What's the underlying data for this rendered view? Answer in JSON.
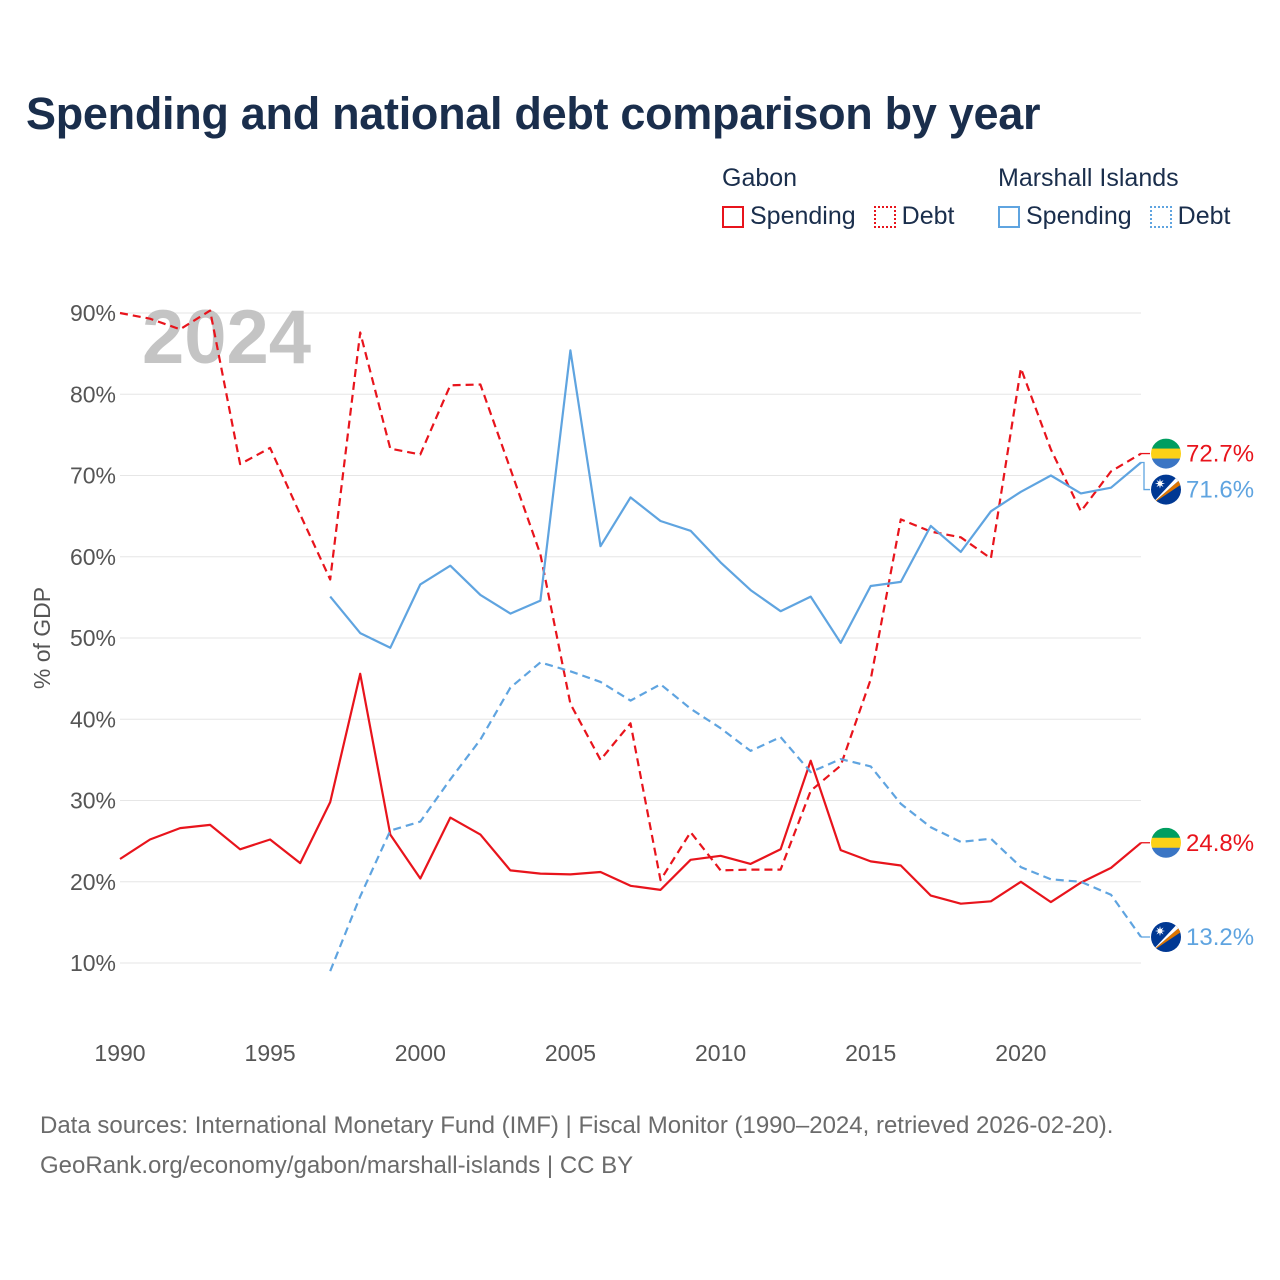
{
  "title": "Spending and national debt comparison by year",
  "legend": {
    "groups": [
      {
        "name": "Gabon",
        "items": [
          {
            "label": "Spending",
            "style": "solid",
            "color": "#e8141c"
          },
          {
            "label": "Debt",
            "style": "dotted",
            "color": "#e8141c"
          }
        ]
      },
      {
        "name": "Marshall Islands",
        "items": [
          {
            "label": "Spending",
            "style": "solid",
            "color": "#5fa4e0"
          },
          {
            "label": "Debt",
            "style": "dotted",
            "color": "#5fa4e0"
          }
        ]
      }
    ]
  },
  "sources": {
    "line1": "Data sources: International Monetary Fund (IMF) | Fiscal Monitor (1990–2024, retrieved 2026-02-20).",
    "line2": "GeoRank.org/economy/gabon/marshall-islands | CC BY"
  },
  "flags": {
    "gabon": [
      "#009e60",
      "#fcd116",
      "#3a75c4"
    ],
    "marshall_islands": {
      "field": "#003893",
      "orange": "#dd7500",
      "white": "#ffffff"
    }
  },
  "chart_data": {
    "type": "line",
    "year_watermark": "2024",
    "ylabel": "% of GDP",
    "ylim": [
      0,
      90
    ],
    "xlim": [
      1990,
      2024
    ],
    "y_ticks": [
      10,
      20,
      30,
      40,
      50,
      60,
      70,
      80,
      90
    ],
    "y_tick_labels": [
      "10%",
      "20%",
      "30%",
      "40%",
      "50%",
      "60%",
      "70%",
      "80%",
      "90%"
    ],
    "x_ticks": [
      1990,
      1995,
      2000,
      2005,
      2010,
      2015,
      2020
    ],
    "x_tick_labels": [
      "1990",
      "1995",
      "2000",
      "2005",
      "2010",
      "2015",
      "2020"
    ],
    "series": [
      {
        "name": "Gabon Debt",
        "country": "Gabon",
        "metric": "Debt",
        "color": "#e8141c",
        "dashed": true,
        "points": [
          [
            1990,
            90.0
          ],
          [
            1991,
            89.3
          ],
          [
            1992,
            88.0
          ],
          [
            1993,
            90.3
          ],
          [
            1994,
            71.4
          ],
          [
            1995,
            73.4
          ],
          [
            1996,
            65.2
          ],
          [
            1997,
            57.2
          ],
          [
            1998,
            87.6
          ],
          [
            1999,
            73.3
          ],
          [
            2000,
            72.6
          ],
          [
            2001,
            81.1
          ],
          [
            2002,
            81.2
          ],
          [
            2003,
            70.8
          ],
          [
            2004,
            60.3
          ],
          [
            2005,
            41.9
          ],
          [
            2006,
            35.0
          ],
          [
            2007,
            39.5
          ],
          [
            2008,
            20.2
          ],
          [
            2009,
            26.1
          ],
          [
            2010,
            21.4
          ],
          [
            2011,
            21.5
          ],
          [
            2012,
            21.5
          ],
          [
            2013,
            31.2
          ],
          [
            2014,
            34.3
          ],
          [
            2015,
            44.9
          ],
          [
            2016,
            64.6
          ],
          [
            2017,
            63.1
          ],
          [
            2018,
            62.4
          ],
          [
            2019,
            59.8
          ],
          [
            2020,
            83.2
          ],
          [
            2021,
            73.2
          ],
          [
            2022,
            65.6
          ],
          [
            2023,
            70.5
          ],
          [
            2024,
            72.7
          ]
        ],
        "end_label": "72.7%"
      },
      {
        "name": "Marshall Islands Spending",
        "country": "Marshall Islands",
        "metric": "Spending",
        "color": "#5fa4e0",
        "dashed": false,
        "points": [
          [
            1997,
            55.1
          ],
          [
            1998,
            50.6
          ],
          [
            1999,
            48.8
          ],
          [
            2000,
            56.6
          ],
          [
            2001,
            58.9
          ],
          [
            2002,
            55.3
          ],
          [
            2003,
            53.0
          ],
          [
            2004,
            54.6
          ],
          [
            2005,
            85.4
          ],
          [
            2006,
            61.3
          ],
          [
            2007,
            67.3
          ],
          [
            2008,
            64.4
          ],
          [
            2009,
            63.2
          ],
          [
            2010,
            59.3
          ],
          [
            2011,
            55.9
          ],
          [
            2012,
            53.3
          ],
          [
            2013,
            55.1
          ],
          [
            2014,
            49.4
          ],
          [
            2015,
            56.4
          ],
          [
            2016,
            56.9
          ],
          [
            2017,
            63.8
          ],
          [
            2018,
            60.6
          ],
          [
            2019,
            65.6
          ],
          [
            2020,
            68.0
          ],
          [
            2021,
            70.0
          ],
          [
            2022,
            67.8
          ],
          [
            2023,
            68.5
          ],
          [
            2024,
            71.6
          ]
        ],
        "end_label": "71.6%"
      },
      {
        "name": "Gabon Spending",
        "country": "Gabon",
        "metric": "Spending",
        "color": "#e8141c",
        "dashed": false,
        "points": [
          [
            1990,
            22.8
          ],
          [
            1991,
            25.2
          ],
          [
            1992,
            26.6
          ],
          [
            1993,
            27.0
          ],
          [
            1994,
            24.0
          ],
          [
            1995,
            25.2
          ],
          [
            1996,
            22.3
          ],
          [
            1997,
            29.8
          ],
          [
            1998,
            45.6
          ],
          [
            1999,
            25.8
          ],
          [
            2000,
            20.4
          ],
          [
            2001,
            27.9
          ],
          [
            2002,
            25.8
          ],
          [
            2003,
            21.4
          ],
          [
            2004,
            21.0
          ],
          [
            2005,
            20.9
          ],
          [
            2006,
            21.2
          ],
          [
            2007,
            19.5
          ],
          [
            2008,
            19.0
          ],
          [
            2009,
            22.7
          ],
          [
            2010,
            23.2
          ],
          [
            2011,
            22.2
          ],
          [
            2012,
            24.0
          ],
          [
            2013,
            34.9
          ],
          [
            2014,
            23.9
          ],
          [
            2015,
            22.5
          ],
          [
            2016,
            22.0
          ],
          [
            2017,
            18.3
          ],
          [
            2018,
            17.3
          ],
          [
            2019,
            17.6
          ],
          [
            2020,
            20.0
          ],
          [
            2021,
            17.5
          ],
          [
            2022,
            19.9
          ],
          [
            2023,
            21.7
          ],
          [
            2024,
            24.8
          ]
        ],
        "end_label": "24.8%"
      },
      {
        "name": "Marshall Islands Debt",
        "country": "Marshall Islands",
        "metric": "Debt",
        "color": "#5fa4e0",
        "dashed": true,
        "points": [
          [
            1997,
            9.0
          ],
          [
            1998,
            18.2
          ],
          [
            1999,
            26.3
          ],
          [
            2000,
            27.4
          ],
          [
            2001,
            32.6
          ],
          [
            2002,
            37.5
          ],
          [
            2003,
            43.9
          ],
          [
            2004,
            47.0
          ],
          [
            2005,
            45.9
          ],
          [
            2006,
            44.6
          ],
          [
            2007,
            42.3
          ],
          [
            2008,
            44.3
          ],
          [
            2009,
            41.3
          ],
          [
            2010,
            38.9
          ],
          [
            2011,
            36.1
          ],
          [
            2012,
            37.8
          ],
          [
            2013,
            33.5
          ],
          [
            2014,
            35.1
          ],
          [
            2015,
            34.2
          ],
          [
            2016,
            29.6
          ],
          [
            2017,
            26.7
          ],
          [
            2018,
            24.9
          ],
          [
            2019,
            25.3
          ],
          [
            2020,
            21.8
          ],
          [
            2021,
            20.3
          ],
          [
            2022,
            20.0
          ],
          [
            2023,
            18.4
          ],
          [
            2024,
            13.2
          ]
        ],
        "end_label": "13.2%"
      }
    ]
  }
}
